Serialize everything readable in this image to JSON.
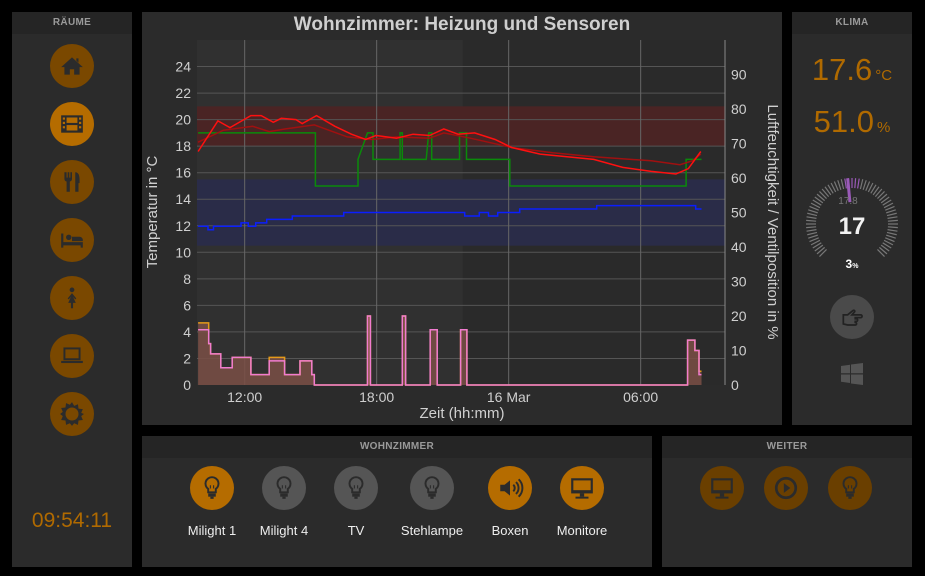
{
  "colors": {
    "accent": "#b56c00",
    "accent_dim": "#7a4800",
    "off": "#555555",
    "weak": "#6a3f00"
  },
  "rooms": {
    "title": "RÄUME",
    "items": [
      {
        "icon": "home-icon",
        "active": false
      },
      {
        "icon": "film-icon",
        "active": true
      },
      {
        "icon": "cutlery-icon",
        "active": false
      },
      {
        "icon": "bed-icon",
        "active": false
      },
      {
        "icon": "woman-icon",
        "active": false
      },
      {
        "icon": "laptop-icon",
        "active": false
      },
      {
        "icon": "sun-icon",
        "active": false
      }
    ],
    "clock": "09:54:11"
  },
  "klima": {
    "title": "KLIMA",
    "temperature": "17.6",
    "temperature_unit": "°C",
    "humidity": "51.0",
    "humidity_unit": "%",
    "gauge": {
      "setpoint": "17",
      "actual": "17.8",
      "valve": "3",
      "valve_unit": "%",
      "setpoint_value": 17,
      "actual_value": 17.8,
      "min": 5,
      "max": 30
    },
    "mode_icon": "hand-pointer-icon",
    "windows_icon": "windows-icon"
  },
  "wohnzimmer": {
    "title": "WOHNZIMMER",
    "devices": [
      {
        "label": "Milight 1",
        "icon": "lightbulb-icon",
        "state": "on"
      },
      {
        "label": "Milight 4",
        "icon": "lightbulb-icon",
        "state": "off"
      },
      {
        "label": "TV",
        "icon": "lightbulb-icon",
        "state": "off"
      },
      {
        "label": "Stehlampe",
        "icon": "lightbulb-icon",
        "state": "off"
      },
      {
        "label": "Boxen",
        "icon": "speaker-icon",
        "state": "on"
      },
      {
        "label": "Monitore",
        "icon": "monitor-icon",
        "state": "on"
      }
    ]
  },
  "weiter": {
    "title": "WEITER",
    "items": [
      {
        "icon": "monitor-icon"
      },
      {
        "icon": "play-icon"
      },
      {
        "icon": "lightbulb-icon"
      }
    ]
  },
  "chart_data": {
    "type": "line",
    "title": "Wohnzimmer: Heizung und Sensoren",
    "xlabel": "Zeit (hh:mm)",
    "ylabel": "Temperatur in °C",
    "y2label": "Luftfeuchtigkeit / Ventilposition in %",
    "xlim": [
      "15 Mar 09:50",
      "16 Mar 09:50"
    ],
    "xticks": [
      {
        "x": "15 Mar 12:00",
        "label": "12:00"
      },
      {
        "x": "15 Mar 18:00",
        "label": "18:00"
      },
      {
        "x": "16 Mar 00:00",
        "label": "16 Mar"
      },
      {
        "x": "16 Mar 06:00",
        "label": "06:00"
      }
    ],
    "ylim": [
      0,
      26
    ],
    "yticks": [
      0,
      2,
      4,
      6,
      8,
      10,
      12,
      14,
      16,
      18,
      20,
      22,
      24
    ],
    "y2lim": [
      0,
      100
    ],
    "y2ticks": [
      0,
      10,
      20,
      30,
      40,
      50,
      60,
      70,
      80,
      90
    ],
    "grid": true,
    "plot_bands_y": [
      {
        "from": 18,
        "to": 21,
        "color": "#4a2424"
      },
      {
        "from": 10.5,
        "to": 15.5,
        "color": "#2a2c48"
      }
    ],
    "plot_bands_x": [
      {
        "from": "15 Mar 09:50",
        "to": "15 Mar 21:55",
        "color": "#303030"
      }
    ],
    "series": [
      {
        "color": "#7a4f45",
        "axis": "right",
        "kind": "area-step",
        "data": [
          [
            "15 Mar 09:53",
            18
          ],
          [
            "15 Mar 10:22",
            12
          ],
          [
            "15 Mar 10:27",
            9
          ],
          [
            "15 Mar 10:55",
            5
          ],
          [
            "15 Mar 11:26",
            8
          ],
          [
            "15 Mar 12:17",
            3
          ],
          [
            "15 Mar 13:07",
            8
          ],
          [
            "15 Mar 13:49",
            3
          ],
          [
            "15 Mar 14:31",
            7
          ],
          [
            "15 Mar 15:03",
            3
          ],
          [
            "15 Mar 15:10",
            0
          ],
          [
            "15 Mar 17:35",
            20
          ],
          [
            "15 Mar 17:43",
            0
          ],
          [
            "15 Mar 19:10",
            20
          ],
          [
            "15 Mar 19:19",
            0
          ],
          [
            "15 Mar 20:26",
            16
          ],
          [
            "15 Mar 20:45",
            0
          ],
          [
            "15 Mar 21:49",
            16
          ],
          [
            "15 Mar 22:06",
            0
          ],
          [
            "16 Mar 08:08",
            13
          ],
          [
            "16 Mar 08:28",
            10
          ],
          [
            "16 Mar 08:39",
            4
          ],
          [
            "16 Mar 08:46",
            4
          ]
        ]
      },
      {
        "color": "#e59a1a",
        "axis": "right",
        "kind": "step",
        "data": [
          [
            "15 Mar 09:53",
            18
          ],
          [
            "15 Mar 10:22",
            12
          ],
          [
            "15 Mar 10:27",
            9
          ],
          [
            "15 Mar 10:55",
            5
          ],
          [
            "15 Mar 11:26",
            8
          ],
          [
            "15 Mar 12:17",
            3
          ],
          [
            "15 Mar 13:07",
            8
          ],
          [
            "15 Mar 13:49",
            3
          ],
          [
            "15 Mar 14:31",
            7
          ],
          [
            "15 Mar 15:03",
            3
          ],
          [
            "15 Mar 15:10",
            0
          ],
          [
            "15 Mar 17:35",
            20
          ],
          [
            "15 Mar 17:43",
            0
          ],
          [
            "15 Mar 19:10",
            20
          ],
          [
            "15 Mar 19:19",
            0
          ],
          [
            "15 Mar 20:26",
            16
          ],
          [
            "15 Mar 20:45",
            0
          ],
          [
            "15 Mar 21:49",
            16
          ],
          [
            "15 Mar 22:06",
            0
          ],
          [
            "16 Mar 08:08",
            13
          ],
          [
            "16 Mar 08:28",
            10
          ],
          [
            "16 Mar 08:39",
            4
          ],
          [
            "16 Mar 08:46",
            4
          ]
        ]
      },
      {
        "color": "#f07cd0",
        "axis": "right",
        "kind": "step",
        "data": [
          [
            "15 Mar 09:53",
            16
          ],
          [
            "15 Mar 10:22",
            12
          ],
          [
            "15 Mar 10:27",
            9
          ],
          [
            "15 Mar 10:55",
            5
          ],
          [
            "15 Mar 11:26",
            8
          ],
          [
            "15 Mar 12:17",
            3
          ],
          [
            "15 Mar 13:07",
            7
          ],
          [
            "15 Mar 13:49",
            3
          ],
          [
            "15 Mar 14:31",
            7
          ],
          [
            "15 Mar 15:03",
            3
          ],
          [
            "15 Mar 15:10",
            0
          ],
          [
            "15 Mar 17:35",
            20
          ],
          [
            "15 Mar 17:43",
            0
          ],
          [
            "15 Mar 19:10",
            20
          ],
          [
            "15 Mar 19:19",
            0
          ],
          [
            "15 Mar 20:26",
            16
          ],
          [
            "15 Mar 20:45",
            0
          ],
          [
            "15 Mar 21:49",
            16
          ],
          [
            "15 Mar 22:06",
            0
          ],
          [
            "16 Mar 08:08",
            13
          ],
          [
            "16 Mar 08:28",
            10
          ],
          [
            "16 Mar 08:39",
            3
          ],
          [
            "16 Mar 08:46",
            3
          ]
        ]
      },
      {
        "color": "#0a1eff",
        "axis": "right",
        "kind": "step",
        "data": [
          [
            "15 Mar 09:53",
            46
          ],
          [
            "15 Mar 10:20",
            45
          ],
          [
            "15 Mar 10:35",
            46
          ],
          [
            "15 Mar 11:50",
            47
          ],
          [
            "15 Mar 12:10",
            46
          ],
          [
            "15 Mar 12:30",
            47
          ],
          [
            "15 Mar 13:00",
            48
          ],
          [
            "15 Mar 14:10",
            49
          ],
          [
            "15 Mar 16:30",
            50
          ],
          [
            "15 Mar 22:00",
            49
          ],
          [
            "15 Mar 22:40",
            50
          ],
          [
            "15 Mar 23:05",
            49
          ],
          [
            "15 Mar 23:30",
            50
          ],
          [
            "16 Mar 00:30",
            51
          ],
          [
            "16 Mar 04:00",
            52
          ],
          [
            "16 Mar 08:30",
            51
          ],
          [
            "16 Mar 08:46",
            51
          ]
        ]
      },
      {
        "color": "#0a8a0a",
        "axis": "left",
        "kind": "line",
        "data": [
          [
            "15 Mar 09:53",
            19
          ],
          [
            "15 Mar 15:13",
            19
          ],
          [
            "15 Mar 15:13",
            15
          ],
          [
            "15 Mar 17:09",
            15
          ],
          [
            "15 Mar 17:09",
            17
          ],
          [
            "15 Mar 17:35",
            19
          ],
          [
            "15 Mar 17:50",
            19
          ],
          [
            "15 Mar 17:50",
            17
          ],
          [
            "15 Mar 19:04",
            17
          ],
          [
            "15 Mar 19:04",
            19
          ],
          [
            "15 Mar 19:10",
            19
          ],
          [
            "15 Mar 19:10",
            17
          ],
          [
            "15 Mar 20:15",
            17
          ],
          [
            "15 Mar 20:22",
            19
          ],
          [
            "15 Mar 20:30",
            19
          ],
          [
            "15 Mar 20:30",
            17
          ],
          [
            "15 Mar 21:46",
            17
          ],
          [
            "15 Mar 21:46",
            19
          ],
          [
            "15 Mar 22:05",
            19
          ],
          [
            "15 Mar 22:05",
            17
          ],
          [
            "16 Mar 00:03",
            17
          ],
          [
            "16 Mar 00:03",
            15
          ],
          [
            "16 Mar 08:04",
            15
          ],
          [
            "16 Mar 08:04",
            17
          ],
          [
            "16 Mar 08:46",
            17
          ]
        ]
      },
      {
        "color": "#a01010",
        "axis": "left",
        "kind": "line",
        "data": [
          [
            "15 Mar 09:53",
            18.3
          ],
          [
            "15 Mar 11:02",
            19.2
          ],
          [
            "15 Mar 12:22",
            19.5
          ],
          [
            "15 Mar 13:07",
            19.1
          ],
          [
            "15 Mar 13:52",
            19.3
          ],
          [
            "15 Mar 15:10",
            19.6
          ],
          [
            "15 Mar 16:40",
            18.7
          ],
          [
            "15 Mar 17:47",
            18.5
          ],
          [
            "15 Mar 18:54",
            18.7
          ],
          [
            "15 Mar 20:24",
            18.6
          ],
          [
            "15 Mar 21:03",
            19.0
          ],
          [
            "15 Mar 22:16",
            18.6
          ],
          [
            "16 Mar 00:08",
            17.9
          ],
          [
            "16 Mar 02:00",
            17.5
          ],
          [
            "16 Mar 03:52",
            17.2
          ],
          [
            "16 Mar 06:29",
            16.9
          ],
          [
            "16 Mar 07:47",
            16.6
          ],
          [
            "16 Mar 08:21",
            16.9
          ],
          [
            "16 Mar 08:44",
            17.4
          ]
        ]
      },
      {
        "color": "#ff1010",
        "axis": "left",
        "kind": "line",
        "data": [
          [
            "15 Mar 09:53",
            17.6
          ],
          [
            "15 Mar 10:47",
            19.9
          ],
          [
            "15 Mar 11:20",
            19.4
          ],
          [
            "15 Mar 12:17",
            20.3
          ],
          [
            "15 Mar 12:45",
            20.3
          ],
          [
            "15 Mar 13:18",
            19.8
          ],
          [
            "15 Mar 13:40",
            20.1
          ],
          [
            "15 Mar 14:20",
            20.0
          ],
          [
            "15 Mar 14:37",
            19.7
          ],
          [
            "15 Mar 15:16",
            20.3
          ],
          [
            "15 Mar 16:06",
            19.5
          ],
          [
            "15 Mar 16:51",
            18.9
          ],
          [
            "15 Mar 17:30",
            18.5
          ],
          [
            "15 Mar 17:58",
            18.8
          ],
          [
            "15 Mar 18:54",
            18.6
          ],
          [
            "15 Mar 19:39",
            18.9
          ],
          [
            "15 Mar 20:24",
            18.8
          ],
          [
            "15 Mar 21:03",
            19.3
          ],
          [
            "15 Mar 21:42",
            18.9
          ],
          [
            "15 Mar 22:27",
            19.0
          ],
          [
            "15 Mar 23:23",
            18.5
          ],
          [
            "16 Mar 00:08",
            17.9
          ],
          [
            "16 Mar 01:26",
            17.4
          ],
          [
            "16 Mar 03:52",
            17.0
          ],
          [
            "16 Mar 05:11",
            16.4
          ],
          [
            "16 Mar 06:29",
            16.1
          ],
          [
            "16 Mar 07:36",
            15.9
          ],
          [
            "16 Mar 08:10",
            16.3
          ],
          [
            "16 Mar 08:44",
            17.6
          ]
        ]
      }
    ]
  }
}
